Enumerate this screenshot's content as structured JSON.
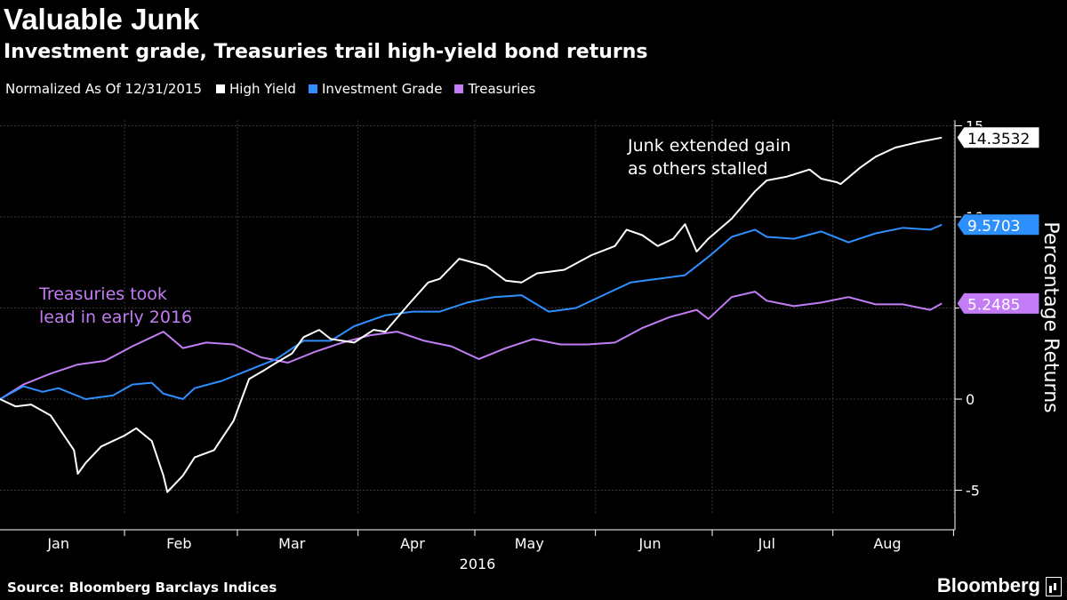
{
  "header": {
    "title": "Valuable Junk",
    "subtitle": "Investment grade, Treasuries trail high-yield bond returns"
  },
  "legend": {
    "note": "Normalized As Of 12/31/2015",
    "items": [
      {
        "label": "High Yield",
        "color": "#ffffff"
      },
      {
        "label": "Investment Grade",
        "color": "#2e8fff"
      },
      {
        "label": "Treasuries",
        "color": "#c37cf5"
      }
    ]
  },
  "footer": {
    "source": "Source: Bloomberg Barclays Indices",
    "brand": "Bloomberg"
  },
  "chart_data": {
    "type": "line",
    "ylabel": "Percentage Returns",
    "xlabel": "2016",
    "ylim": [
      -6.5,
      15.5
    ],
    "y_ticks": [
      -5,
      0,
      5,
      10,
      15
    ],
    "y_tick_labels": [
      "-5",
      "0",
      "5",
      "10",
      "15"
    ],
    "x_range": [
      "2015-12-31",
      "2016-08-31"
    ],
    "x_ticks": [
      {
        "label": "Jan",
        "date": "2016-01-15"
      },
      {
        "label": "Feb",
        "date": "2016-02-15"
      },
      {
        "label": "Mar",
        "date": "2016-03-15"
      },
      {
        "label": "Apr",
        "date": "2016-04-15"
      },
      {
        "label": "May",
        "date": "2016-05-15"
      },
      {
        "label": "Jun",
        "date": "2016-06-15"
      },
      {
        "label": "Jul",
        "date": "2016-07-15"
      },
      {
        "label": "Aug",
        "date": "2016-08-15"
      }
    ],
    "grid": true,
    "series": [
      {
        "name": "High Yield",
        "color": "#ffffff",
        "end_label": "14.3532",
        "points": [
          [
            "2015-12-31",
            0.0
          ],
          [
            "2016-01-04",
            -0.4
          ],
          [
            "2016-01-08",
            -0.3
          ],
          [
            "2016-01-13",
            -0.9
          ],
          [
            "2016-01-19",
            -2.8
          ],
          [
            "2016-01-20",
            -4.1
          ],
          [
            "2016-01-22",
            -3.5
          ],
          [
            "2016-01-26",
            -2.6
          ],
          [
            "2016-02-01",
            -2.0
          ],
          [
            "2016-02-04",
            -1.6
          ],
          [
            "2016-02-08",
            -2.3
          ],
          [
            "2016-02-11",
            -4.2
          ],
          [
            "2016-02-12",
            -5.1
          ],
          [
            "2016-02-16",
            -4.2
          ],
          [
            "2016-02-19",
            -3.2
          ],
          [
            "2016-02-24",
            -2.8
          ],
          [
            "2016-02-29",
            -1.2
          ],
          [
            "2016-03-04",
            1.1
          ],
          [
            "2016-03-08",
            1.6
          ],
          [
            "2016-03-11",
            2.0
          ],
          [
            "2016-03-15",
            2.5
          ],
          [
            "2016-03-18",
            3.4
          ],
          [
            "2016-03-22",
            3.8
          ],
          [
            "2016-03-25",
            3.3
          ],
          [
            "2016-03-31",
            3.1
          ],
          [
            "2016-04-05",
            3.8
          ],
          [
            "2016-04-08",
            3.7
          ],
          [
            "2016-04-14",
            5.2
          ],
          [
            "2016-04-19",
            6.4
          ],
          [
            "2016-04-22",
            6.6
          ],
          [
            "2016-04-27",
            7.7
          ],
          [
            "2016-05-04",
            7.3
          ],
          [
            "2016-05-09",
            6.5
          ],
          [
            "2016-05-13",
            6.4
          ],
          [
            "2016-05-17",
            6.9
          ],
          [
            "2016-05-24",
            7.1
          ],
          [
            "2016-05-31",
            7.9
          ],
          [
            "2016-06-06",
            8.4
          ],
          [
            "2016-06-09",
            9.3
          ],
          [
            "2016-06-13",
            9.0
          ],
          [
            "2016-06-17",
            8.4
          ],
          [
            "2016-06-21",
            8.8
          ],
          [
            "2016-06-24",
            9.6
          ],
          [
            "2016-06-27",
            8.1
          ],
          [
            "2016-06-30",
            8.8
          ],
          [
            "2016-07-06",
            9.9
          ],
          [
            "2016-07-08",
            10.4
          ],
          [
            "2016-07-12",
            11.4
          ],
          [
            "2016-07-15",
            12.0
          ],
          [
            "2016-07-20",
            12.2
          ],
          [
            "2016-07-26",
            12.6
          ],
          [
            "2016-07-29",
            12.1
          ],
          [
            "2016-08-02",
            11.9
          ],
          [
            "2016-08-03",
            11.8
          ],
          [
            "2016-08-08",
            12.7
          ],
          [
            "2016-08-12",
            13.3
          ],
          [
            "2016-08-17",
            13.8
          ],
          [
            "2016-08-23",
            14.1
          ],
          [
            "2016-08-29",
            14.3532
          ]
        ]
      },
      {
        "name": "Investment Grade",
        "color": "#2e8fff",
        "end_label": "9.5703",
        "points": [
          [
            "2015-12-31",
            0.0
          ],
          [
            "2016-01-06",
            0.7
          ],
          [
            "2016-01-11",
            0.4
          ],
          [
            "2016-01-15",
            0.6
          ],
          [
            "2016-01-22",
            0.0
          ],
          [
            "2016-01-29",
            0.2
          ],
          [
            "2016-02-03",
            0.8
          ],
          [
            "2016-02-08",
            0.9
          ],
          [
            "2016-02-11",
            0.3
          ],
          [
            "2016-02-16",
            0.0
          ],
          [
            "2016-02-19",
            0.6
          ],
          [
            "2016-02-26",
            1.0
          ],
          [
            "2016-03-04",
            1.6
          ],
          [
            "2016-03-11",
            2.2
          ],
          [
            "2016-03-18",
            3.2
          ],
          [
            "2016-03-25",
            3.2
          ],
          [
            "2016-03-31",
            4.0
          ],
          [
            "2016-04-08",
            4.6
          ],
          [
            "2016-04-15",
            4.8
          ],
          [
            "2016-04-22",
            4.8
          ],
          [
            "2016-04-29",
            5.3
          ],
          [
            "2016-05-06",
            5.6
          ],
          [
            "2016-05-13",
            5.7
          ],
          [
            "2016-05-20",
            4.8
          ],
          [
            "2016-05-27",
            5.0
          ],
          [
            "2016-06-03",
            5.7
          ],
          [
            "2016-06-10",
            6.4
          ],
          [
            "2016-06-17",
            6.6
          ],
          [
            "2016-06-24",
            6.8
          ],
          [
            "2016-06-30",
            7.8
          ],
          [
            "2016-07-06",
            8.9
          ],
          [
            "2016-07-12",
            9.3
          ],
          [
            "2016-07-15",
            8.9
          ],
          [
            "2016-07-22",
            8.8
          ],
          [
            "2016-07-29",
            9.2
          ],
          [
            "2016-08-05",
            8.6
          ],
          [
            "2016-08-12",
            9.1
          ],
          [
            "2016-08-19",
            9.4
          ],
          [
            "2016-08-26",
            9.3
          ],
          [
            "2016-08-29",
            9.5703
          ]
        ]
      },
      {
        "name": "Treasuries",
        "color": "#c37cf5",
        "end_label": "5.2485",
        "points": [
          [
            "2015-12-31",
            0.0
          ],
          [
            "2016-01-06",
            0.8
          ],
          [
            "2016-01-13",
            1.4
          ],
          [
            "2016-01-20",
            1.9
          ],
          [
            "2016-01-27",
            2.1
          ],
          [
            "2016-02-03",
            2.9
          ],
          [
            "2016-02-08",
            3.4
          ],
          [
            "2016-02-11",
            3.7
          ],
          [
            "2016-02-16",
            2.8
          ],
          [
            "2016-02-22",
            3.1
          ],
          [
            "2016-02-29",
            3.0
          ],
          [
            "2016-03-07",
            2.3
          ],
          [
            "2016-03-14",
            2.0
          ],
          [
            "2016-03-21",
            2.6
          ],
          [
            "2016-03-28",
            3.1
          ],
          [
            "2016-04-04",
            3.5
          ],
          [
            "2016-04-11",
            3.7
          ],
          [
            "2016-04-18",
            3.2
          ],
          [
            "2016-04-25",
            2.9
          ],
          [
            "2016-05-02",
            2.2
          ],
          [
            "2016-05-09",
            2.8
          ],
          [
            "2016-05-16",
            3.3
          ],
          [
            "2016-05-23",
            3.0
          ],
          [
            "2016-05-30",
            3.0
          ],
          [
            "2016-06-06",
            3.1
          ],
          [
            "2016-06-13",
            3.9
          ],
          [
            "2016-06-20",
            4.5
          ],
          [
            "2016-06-27",
            4.9
          ],
          [
            "2016-06-30",
            4.4
          ],
          [
            "2016-07-06",
            5.6
          ],
          [
            "2016-07-12",
            5.9
          ],
          [
            "2016-07-15",
            5.4
          ],
          [
            "2016-07-22",
            5.1
          ],
          [
            "2016-07-29",
            5.3
          ],
          [
            "2016-08-05",
            5.6
          ],
          [
            "2016-08-12",
            5.2
          ],
          [
            "2016-08-19",
            5.2
          ],
          [
            "2016-08-26",
            4.9
          ],
          [
            "2016-08-29",
            5.2485
          ]
        ]
      }
    ],
    "annotations": [
      {
        "lines": [
          "Junk extended gain",
          "as others stalled"
        ],
        "color": "#ffffff"
      },
      {
        "lines": [
          "Treasuries took",
          "lead in early 2016"
        ],
        "color": "#c37cf5"
      }
    ]
  }
}
